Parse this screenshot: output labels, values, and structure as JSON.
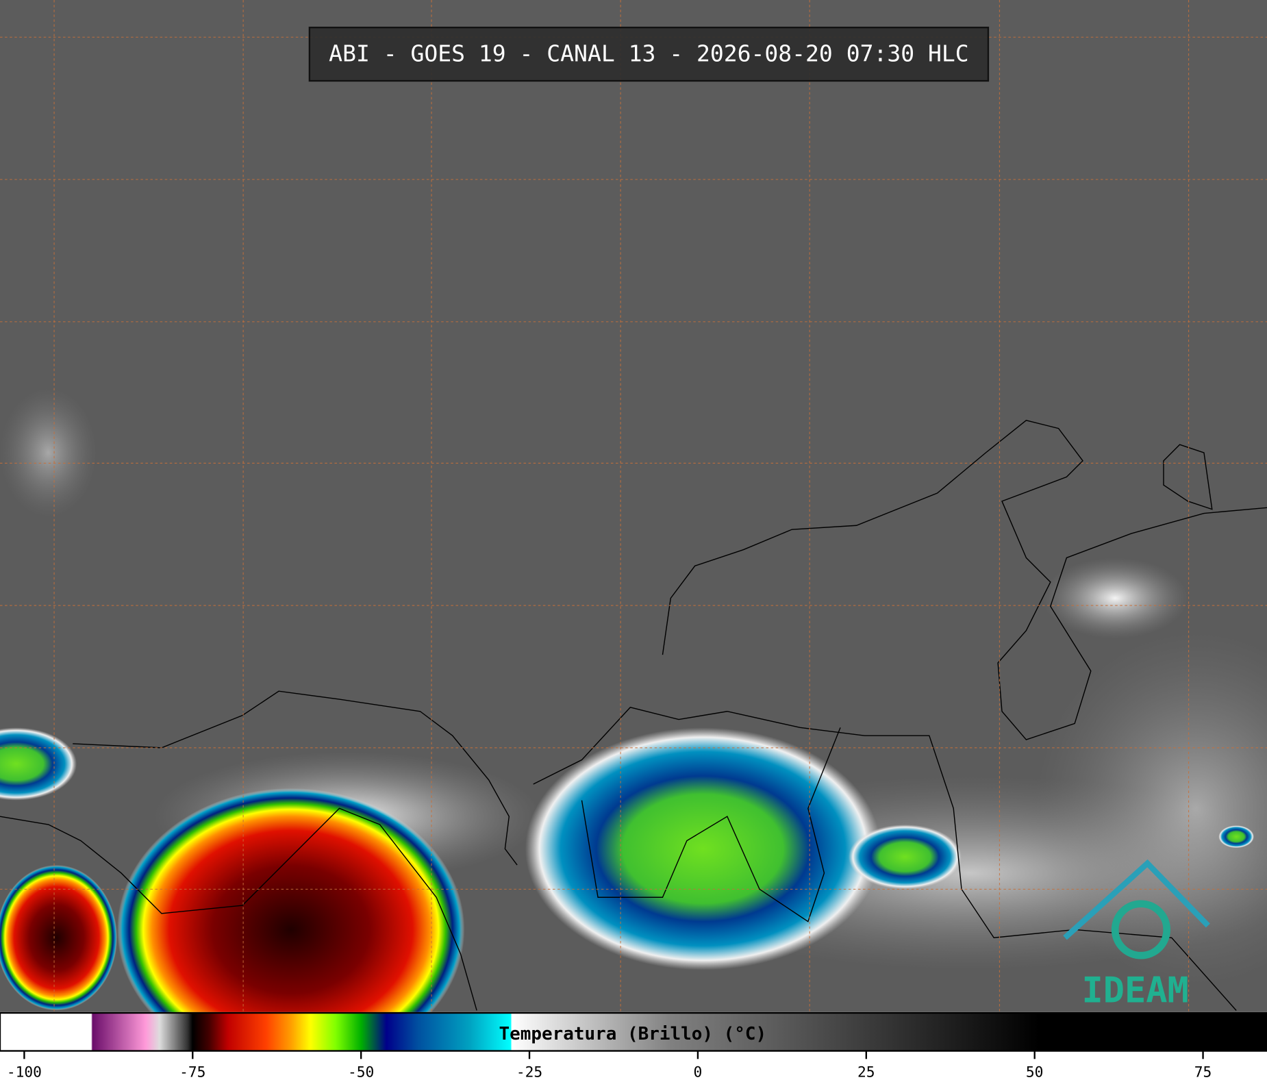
{
  "title": "ABI - GOES 19 - CANAL 13 - 2026-08-20 07:30 HLC",
  "logo": "IDEAM",
  "colorbar": {
    "label": "Temperatura (Brillo) (°C)",
    "xlim": [
      -103.6,
      84.5
    ],
    "xticks": [
      -100,
      -75,
      -50,
      -25,
      0,
      25,
      50,
      75
    ]
  }
}
